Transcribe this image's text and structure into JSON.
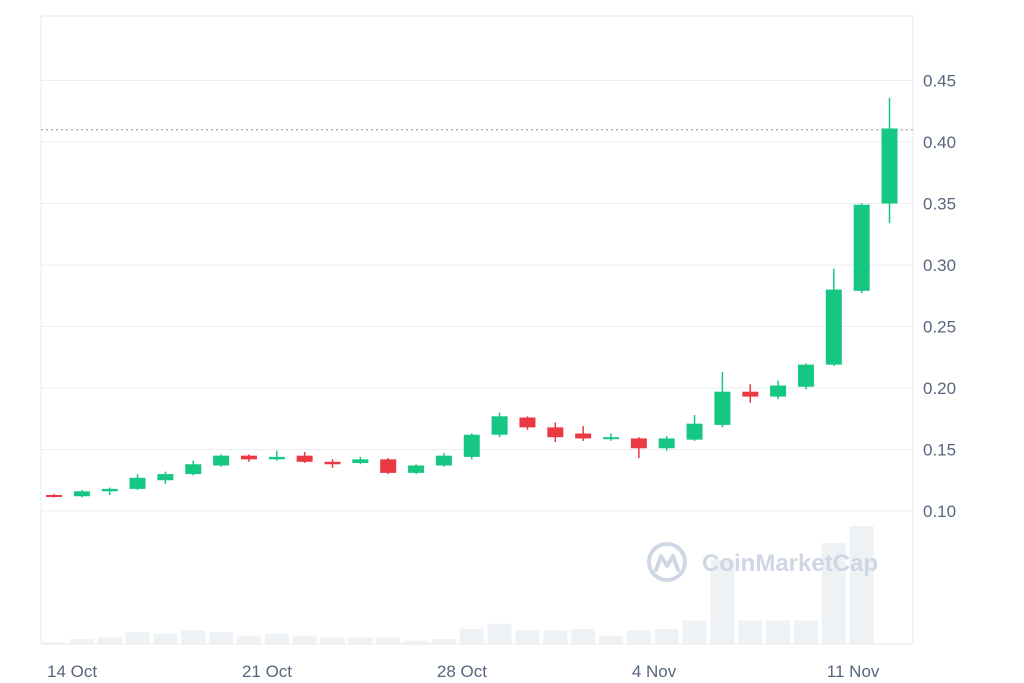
{
  "watermark": "CoinMarketCap",
  "colors": {
    "up": "#16c784",
    "down": "#ea3943",
    "volume": "#eff2f5",
    "grid": "#e9ecf1",
    "axis_text": "#58667e",
    "last_price_line": "#8a93a3"
  },
  "chart_data": {
    "type": "candlestick",
    "title": "",
    "xlabel": "",
    "ylabel": "",
    "ylim": [
      0.0,
      0.5
    ],
    "y_ticks": [
      0.1,
      0.15,
      0.2,
      0.25,
      0.3,
      0.35,
      0.4,
      0.45
    ],
    "y_tick_labels": [
      "0.10",
      "0.15",
      "0.20",
      "0.25",
      "0.30",
      "0.35",
      "0.40",
      "0.45"
    ],
    "x_tick_labels": [
      "14 Oct",
      "21 Oct",
      "28 Oct",
      "4 Nov",
      "11 Nov"
    ],
    "x_tick_dates": [
      "2024-10-14",
      "2024-10-21",
      "2024-10-28",
      "2024-11-04",
      "2024-11-11"
    ],
    "last_price": 0.41,
    "grid": true,
    "candles": [
      {
        "date": "2024-10-14",
        "open": 0.113,
        "high": 0.114,
        "low": 0.111,
        "close": 0.112
      },
      {
        "date": "2024-10-15",
        "open": 0.112,
        "high": 0.117,
        "low": 0.111,
        "close": 0.116
      },
      {
        "date": "2024-10-16",
        "open": 0.116,
        "high": 0.119,
        "low": 0.113,
        "close": 0.118
      },
      {
        "date": "2024-10-17",
        "open": 0.118,
        "high": 0.13,
        "low": 0.117,
        "close": 0.127
      },
      {
        "date": "2024-10-18",
        "open": 0.125,
        "high": 0.132,
        "low": 0.122,
        "close": 0.13
      },
      {
        "date": "2024-10-19",
        "open": 0.13,
        "high": 0.141,
        "low": 0.129,
        "close": 0.138
      },
      {
        "date": "2024-10-20",
        "open": 0.137,
        "high": 0.146,
        "low": 0.136,
        "close": 0.145
      },
      {
        "date": "2024-10-21",
        "open": 0.145,
        "high": 0.146,
        "low": 0.14,
        "close": 0.142
      },
      {
        "date": "2024-10-22",
        "open": 0.142,
        "high": 0.149,
        "low": 0.141,
        "close": 0.144
      },
      {
        "date": "2024-10-23",
        "open": 0.145,
        "high": 0.148,
        "low": 0.139,
        "close": 0.14
      },
      {
        "date": "2024-10-24",
        "open": 0.14,
        "high": 0.142,
        "low": 0.135,
        "close": 0.138
      },
      {
        "date": "2024-10-25",
        "open": 0.139,
        "high": 0.144,
        "low": 0.138,
        "close": 0.142
      },
      {
        "date": "2024-10-26",
        "open": 0.142,
        "high": 0.143,
        "low": 0.13,
        "close": 0.131
      },
      {
        "date": "2024-10-27",
        "open": 0.131,
        "high": 0.138,
        "low": 0.13,
        "close": 0.137
      },
      {
        "date": "2024-10-28",
        "open": 0.137,
        "high": 0.147,
        "low": 0.136,
        "close": 0.145
      },
      {
        "date": "2024-10-29",
        "open": 0.144,
        "high": 0.163,
        "low": 0.142,
        "close": 0.162
      },
      {
        "date": "2024-10-30",
        "open": 0.162,
        "high": 0.18,
        "low": 0.16,
        "close": 0.177
      },
      {
        "date": "2024-10-31",
        "open": 0.176,
        "high": 0.177,
        "low": 0.166,
        "close": 0.168
      },
      {
        "date": "2024-11-01",
        "open": 0.168,
        "high": 0.172,
        "low": 0.156,
        "close": 0.16
      },
      {
        "date": "2024-11-02",
        "open": 0.163,
        "high": 0.169,
        "low": 0.157,
        "close": 0.159
      },
      {
        "date": "2024-11-03",
        "open": 0.159,
        "high": 0.163,
        "low": 0.157,
        "close": 0.16
      },
      {
        "date": "2024-11-04",
        "open": 0.159,
        "high": 0.16,
        "low": 0.143,
        "close": 0.151
      },
      {
        "date": "2024-11-05",
        "open": 0.151,
        "high": 0.161,
        "low": 0.149,
        "close": 0.159
      },
      {
        "date": "2024-11-06",
        "open": 0.158,
        "high": 0.178,
        "low": 0.157,
        "close": 0.171
      },
      {
        "date": "2024-11-07",
        "open": 0.17,
        "high": 0.213,
        "low": 0.168,
        "close": 0.197
      },
      {
        "date": "2024-11-08",
        "open": 0.197,
        "high": 0.203,
        "low": 0.188,
        "close": 0.193
      },
      {
        "date": "2024-11-09",
        "open": 0.193,
        "high": 0.206,
        "low": 0.191,
        "close": 0.202
      },
      {
        "date": "2024-11-10",
        "open": 0.201,
        "high": 0.22,
        "low": 0.199,
        "close": 0.219
      },
      {
        "date": "2024-11-11",
        "open": 0.219,
        "high": 0.297,
        "low": 0.218,
        "close": 0.28
      },
      {
        "date": "2024-11-12",
        "open": 0.279,
        "high": 0.35,
        "low": 0.277,
        "close": 0.349
      },
      {
        "date": "2024-11-13",
        "open": 0.35,
        "high": 0.436,
        "low": 0.334,
        "close": 0.411
      }
    ],
    "volume_relative": [
      0.01,
      0.03,
      0.04,
      0.07,
      0.06,
      0.08,
      0.07,
      0.05,
      0.06,
      0.05,
      0.04,
      0.04,
      0.04,
      0.02,
      0.03,
      0.09,
      0.12,
      0.08,
      0.08,
      0.09,
      0.05,
      0.08,
      0.09,
      0.14,
      0.5,
      0.14,
      0.14,
      0.14,
      0.6,
      0.7,
      0.0
    ]
  }
}
